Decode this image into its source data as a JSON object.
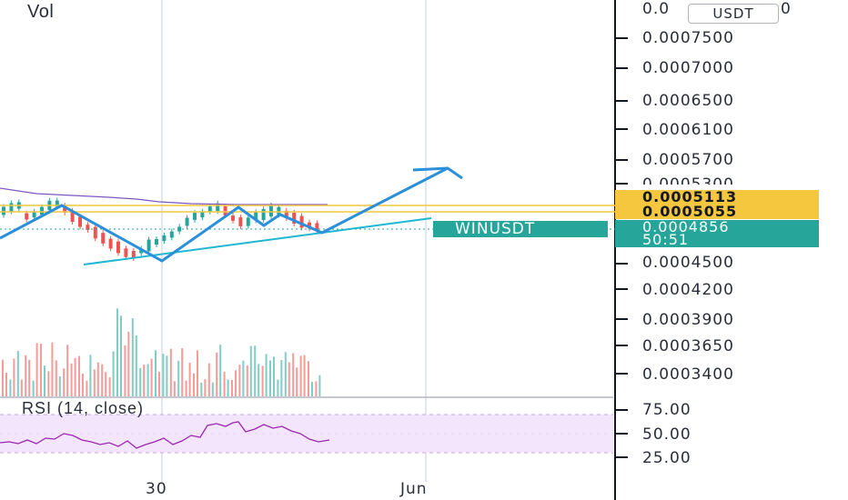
{
  "symbol_tag": "WINUSDT",
  "currency_button": "USDT",
  "volume_label": "Vol",
  "rsi_label": "RSI (14, close)",
  "price_axis": [
    {
      "label": "0.0007500",
      "price": 0.00075
    },
    {
      "label": "0.0007000",
      "price": 0.0007
    },
    {
      "label": "0.0006500",
      "price": 0.00065
    },
    {
      "label": "0.0006100",
      "price": 0.00061
    },
    {
      "label": "0.0005700",
      "price": 0.00057
    },
    {
      "label": "0.0004500",
      "price": 0.00045
    },
    {
      "label": "0.0004200",
      "price": 0.00042
    },
    {
      "label": "0.0003900",
      "price": 0.00039
    },
    {
      "label": "0.0003650",
      "price": 0.000365
    },
    {
      "label": "0.0003400",
      "price": 0.00034
    }
  ],
  "price_axis_partial_top": "0.0",
  "price_axis_partial_top_end": "0",
  "price_axis_partial_mid": "0.0005300",
  "horizontal_levels": [
    {
      "label": "0.0005113",
      "color": "#f4c73f"
    },
    {
      "label": "0.0005055",
      "color": "#f4c73f"
    }
  ],
  "current_price": {
    "label": "0.0004856",
    "countdown": "50:51",
    "color": "#26a69a"
  },
  "rsi_axis": [
    "75.00",
    "50.00",
    "25.00"
  ],
  "time_axis": [
    "30",
    "Jun"
  ],
  "colors": {
    "up": "#26a69a",
    "down": "#ef5350",
    "vol_up": "#7fcdc4",
    "vol_down": "#f59b98",
    "drawing": "#2b8fd9",
    "trendline": "#1fb8d0",
    "ma": "#7e57c2",
    "rsi_line": "#9c27b0",
    "rsi_band": "#f3e5fb"
  }
}
